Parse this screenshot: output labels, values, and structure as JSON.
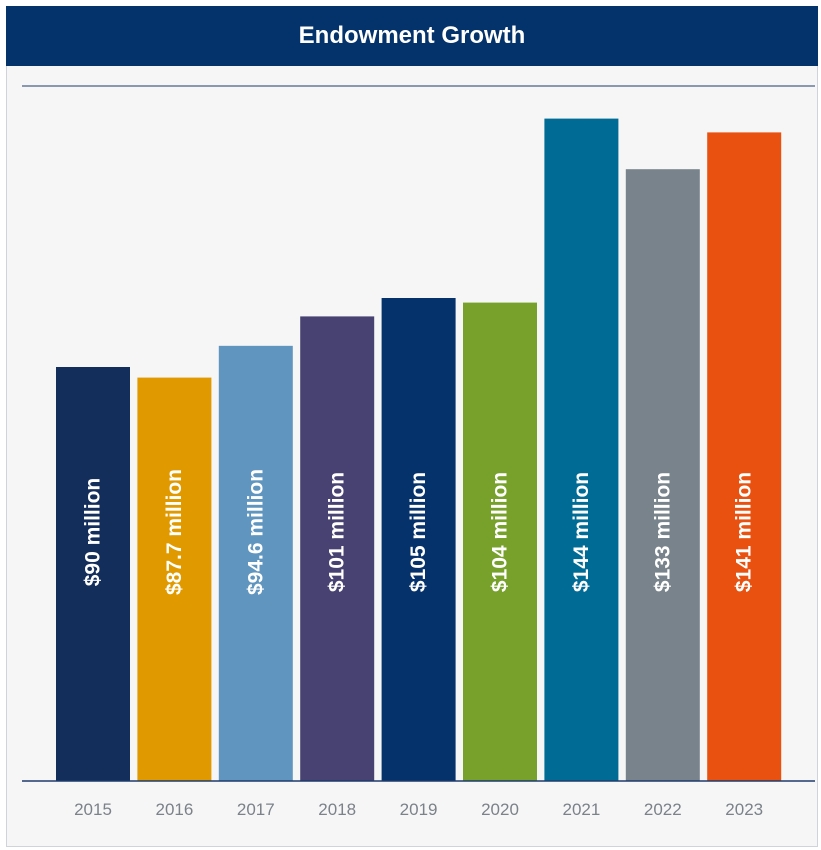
{
  "header": {
    "title": "Endowment Growth"
  },
  "chart_data": {
    "type": "bar",
    "title": "Endowment Growth",
    "xlabel": "",
    "ylabel": "",
    "categories": [
      "2015",
      "2016",
      "2017",
      "2018",
      "2019",
      "2020",
      "2021",
      "2022",
      "2023"
    ],
    "values": [
      90,
      87.7,
      94.6,
      101,
      105,
      104,
      144,
      133,
      141
    ],
    "unit": "million USD",
    "data_labels": [
      "$90 million",
      "$87.7 million",
      "$94.6 million",
      "$101 million",
      "$105 million",
      "$104 million",
      "$144 million",
      "$133 million",
      "$141 million"
    ],
    "colors": [
      "#142e5c",
      "#e09a00",
      "#5f95be",
      "#484272",
      "#05326a",
      "#77a12b",
      "#006c96",
      "#78838b",
      "#e8510f"
    ],
    "grid": false,
    "legend": "none"
  }
}
